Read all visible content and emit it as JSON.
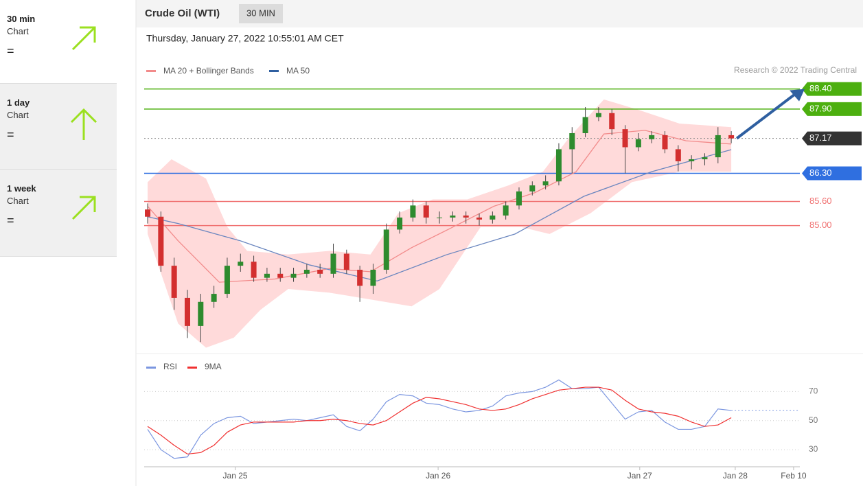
{
  "sidebar": [
    {
      "period": "30 min",
      "label": "Chart",
      "signal": "="
    },
    {
      "period": "1 day",
      "label": "Chart",
      "signal": "="
    },
    {
      "period": "1 week",
      "label": "Chart",
      "signal": "="
    }
  ],
  "header": {
    "title": "Crude Oil (WTI)",
    "badge": "30 MIN",
    "timestamp": "Thursday, January 27, 2022 10:55:01 AM CET"
  },
  "chart_data": [
    {
      "type": "candlestick",
      "credit": "Research © 2022 Trading Central",
      "xlim": [
        -0.26,
        49.17
      ],
      "ylim": [
        81.9,
        88.65
      ],
      "x": [
        0,
        1,
        2,
        3,
        4,
        5,
        6,
        7,
        8,
        9,
        10,
        11,
        12,
        13,
        14,
        15,
        16,
        17,
        18,
        19,
        20,
        21,
        22,
        23,
        24,
        25,
        26,
        27,
        28,
        29,
        30,
        31,
        32,
        33,
        34,
        35,
        36,
        37,
        38,
        39,
        40,
        41,
        42,
        43,
        44
      ],
      "open": [
        85.4,
        85.22,
        84.0,
        83.2,
        82.5,
        83.1,
        83.3,
        84.0,
        84.1,
        83.7,
        83.8,
        83.7,
        83.8,
        83.9,
        83.8,
        84.3,
        83.9,
        83.5,
        83.9,
        84.9,
        85.2,
        85.5,
        85.2,
        85.2,
        85.25,
        85.2,
        85.15,
        85.25,
        85.5,
        85.85,
        86.0,
        86.1,
        86.9,
        87.3,
        87.7,
        87.8,
        87.4,
        86.95,
        87.15,
        87.25,
        86.9,
        86.6,
        86.65,
        86.7,
        87.25
      ],
      "high": [
        85.55,
        85.35,
        84.2,
        83.4,
        83.3,
        83.5,
        84.2,
        84.3,
        84.25,
        83.95,
        83.95,
        83.95,
        84.05,
        84.05,
        84.55,
        84.4,
        84.0,
        84.05,
        85.05,
        85.35,
        85.65,
        85.6,
        85.35,
        85.35,
        85.35,
        85.3,
        85.35,
        85.6,
        85.95,
        86.1,
        86.25,
        87.05,
        87.45,
        87.95,
        87.95,
        87.9,
        87.5,
        87.3,
        87.35,
        87.35,
        87.0,
        86.75,
        86.8,
        87.45,
        87.35
      ],
      "low": [
        85.05,
        83.85,
        82.9,
        82.2,
        82.1,
        82.95,
        83.2,
        83.85,
        83.6,
        83.6,
        83.6,
        83.6,
        83.7,
        83.7,
        83.7,
        83.8,
        83.1,
        83.3,
        83.8,
        84.8,
        85.1,
        85.05,
        85.05,
        85.1,
        85.05,
        85.0,
        85.05,
        85.15,
        85.4,
        85.75,
        85.9,
        86.0,
        86.3,
        87.2,
        87.6,
        87.25,
        86.3,
        86.85,
        87.05,
        86.8,
        86.35,
        86.4,
        86.5,
        86.55,
        87.05
      ],
      "close": [
        85.22,
        84.0,
        83.2,
        82.5,
        83.1,
        83.3,
        84.0,
        84.1,
        83.7,
        83.8,
        83.7,
        83.8,
        83.9,
        83.8,
        84.3,
        83.9,
        83.5,
        83.9,
        84.9,
        85.2,
        85.5,
        85.2,
        85.2,
        85.25,
        85.2,
        85.15,
        85.25,
        85.5,
        85.85,
        86.0,
        86.1,
        86.9,
        87.3,
        87.7,
        87.8,
        87.4,
        86.95,
        87.15,
        87.25,
        86.9,
        86.6,
        86.65,
        86.7,
        87.25,
        87.17
      ],
      "colors": {
        "up": "#2e8b2e",
        "down": "#d32f2f"
      },
      "series": [
        {
          "name": "MA 20 + Bollinger Bands",
          "color": "#f28b8b",
          "x": [
            0,
            2.3,
            5.4,
            9.6,
            13.7,
            16.8,
            19.9,
            23.0,
            26.1,
            29.2,
            32.3,
            34.4,
            37.5,
            40.6,
            44
          ],
          "values": [
            85.48,
            84.62,
            83.59,
            83.67,
            83.93,
            83.85,
            84.45,
            84.96,
            85.48,
            85.82,
            86.34,
            87.28,
            87.37,
            87.11,
            87.03
          ],
          "band": {
            "color": "#ffdada",
            "upper": {
              "x": [
                0,
                1.8,
                4.4,
                6.0,
                7.5,
                10.6,
                13.7,
                16.8,
                18.9,
                21.5,
                24.1,
                27.2,
                29.8,
                31.8,
                34.4,
                37.0,
                40.1,
                44
              ],
              "values": [
                86.08,
                86.65,
                86.17,
                84.97,
                84.37,
                84.28,
                84.37,
                84.28,
                85.31,
                85.65,
                85.65,
                86.0,
                86.34,
                87.2,
                88.14,
                87.88,
                87.54,
                87.45
              ]
            },
            "lower": {
              "x": [
                0,
                2.3,
                4.4,
                6.5,
                8.5,
                10.6,
                13.7,
                16.8,
                19.9,
                22.0,
                25.1,
                28.2,
                30.3,
                33.4,
                36.5,
                40.1,
                44
              ],
              "values": [
                84.79,
                82.56,
                81.96,
                82.21,
                82.9,
                83.42,
                83.33,
                83.16,
                82.99,
                83.42,
                84.96,
                84.96,
                84.79,
                85.31,
                86.08,
                86.34,
                86.34
              ]
            }
          }
        },
        {
          "name": "MA 50",
          "color": "#6a86bf",
          "x": [
            0,
            2.3,
            7.0,
            12.2,
            17.3,
            22.5,
            27.7,
            32.9,
            38.0,
            44
          ],
          "values": [
            85.22,
            85.05,
            84.62,
            84.02,
            83.62,
            84.27,
            84.79,
            85.73,
            86.34,
            86.89
          ]
        }
      ],
      "legend_colors": [
        "#f28b8b",
        "#2f5fa0"
      ],
      "levels": [
        {
          "value": 88.4,
          "label": "88.40",
          "color": "#4caf0f",
          "style": "solid",
          "label_style": "box"
        },
        {
          "value": 87.9,
          "label": "87.90",
          "color": "#4caf0f",
          "style": "solid",
          "label_style": "box"
        },
        {
          "value": 87.17,
          "label": "87.17",
          "color": "#333333",
          "style": "dotted",
          "label_style": "box"
        },
        {
          "value": 86.3,
          "label": "86.30",
          "color": "#2f6fe0",
          "style": "solid",
          "label_style": "box"
        },
        {
          "value": 85.6,
          "label": "85.60",
          "color": "#f07070",
          "style": "solid",
          "label_style": "text"
        },
        {
          "value": 85.0,
          "label": "85.00",
          "color": "#f07070",
          "style": "solid",
          "label_style": "text"
        }
      ]
    },
    {
      "type": "line",
      "xlim": [
        -0.26,
        49.17
      ],
      "ylim": [
        22,
        82
      ],
      "yticks": [
        30,
        50,
        70
      ],
      "xticks": [
        {
          "value": 6.6,
          "label": "Jan 25"
        },
        {
          "value": 21.9,
          "label": "Jan 26"
        },
        {
          "value": 37.1,
          "label": "Jan 27"
        },
        {
          "value": 44.3,
          "label": "Jan 28"
        },
        {
          "value": 48.7,
          "label": "Feb 10"
        }
      ],
      "x": [
        0,
        1,
        2,
        3,
        4,
        5,
        6,
        7,
        8,
        9,
        10,
        11,
        12,
        13,
        14,
        15,
        16,
        17,
        18,
        19,
        20,
        21,
        22,
        23,
        24,
        25,
        26,
        27,
        28,
        29,
        30,
        31,
        32,
        33,
        34,
        35,
        36,
        37,
        38,
        39,
        40,
        41,
        42,
        43,
        44
      ],
      "series": [
        {
          "name": "RSI",
          "color": "#7b96e0",
          "values": [
            44,
            30,
            24,
            25,
            40,
            48,
            52,
            53,
            48,
            49,
            50,
            51,
            50,
            52,
            54,
            46,
            43,
            51,
            63,
            68,
            67,
            62,
            61,
            58,
            56,
            57,
            60,
            67,
            69,
            70,
            73,
            78,
            72,
            72,
            73,
            62,
            51,
            56,
            57,
            49,
            44,
            44,
            46,
            58,
            57
          ]
        },
        {
          "name": "9MA",
          "color": "#f03030",
          "values": [
            46,
            40,
            33,
            27,
            28,
            33,
            42,
            47,
            49,
            49,
            49,
            49,
            50,
            50,
            51,
            50,
            48,
            47,
            50,
            56,
            62,
            66,
            65,
            63,
            61,
            58,
            57,
            58,
            61,
            65,
            68,
            71,
            72,
            73,
            73,
            71,
            64,
            58,
            56,
            55,
            53,
            49,
            46,
            47,
            52
          ]
        }
      ]
    }
  ]
}
